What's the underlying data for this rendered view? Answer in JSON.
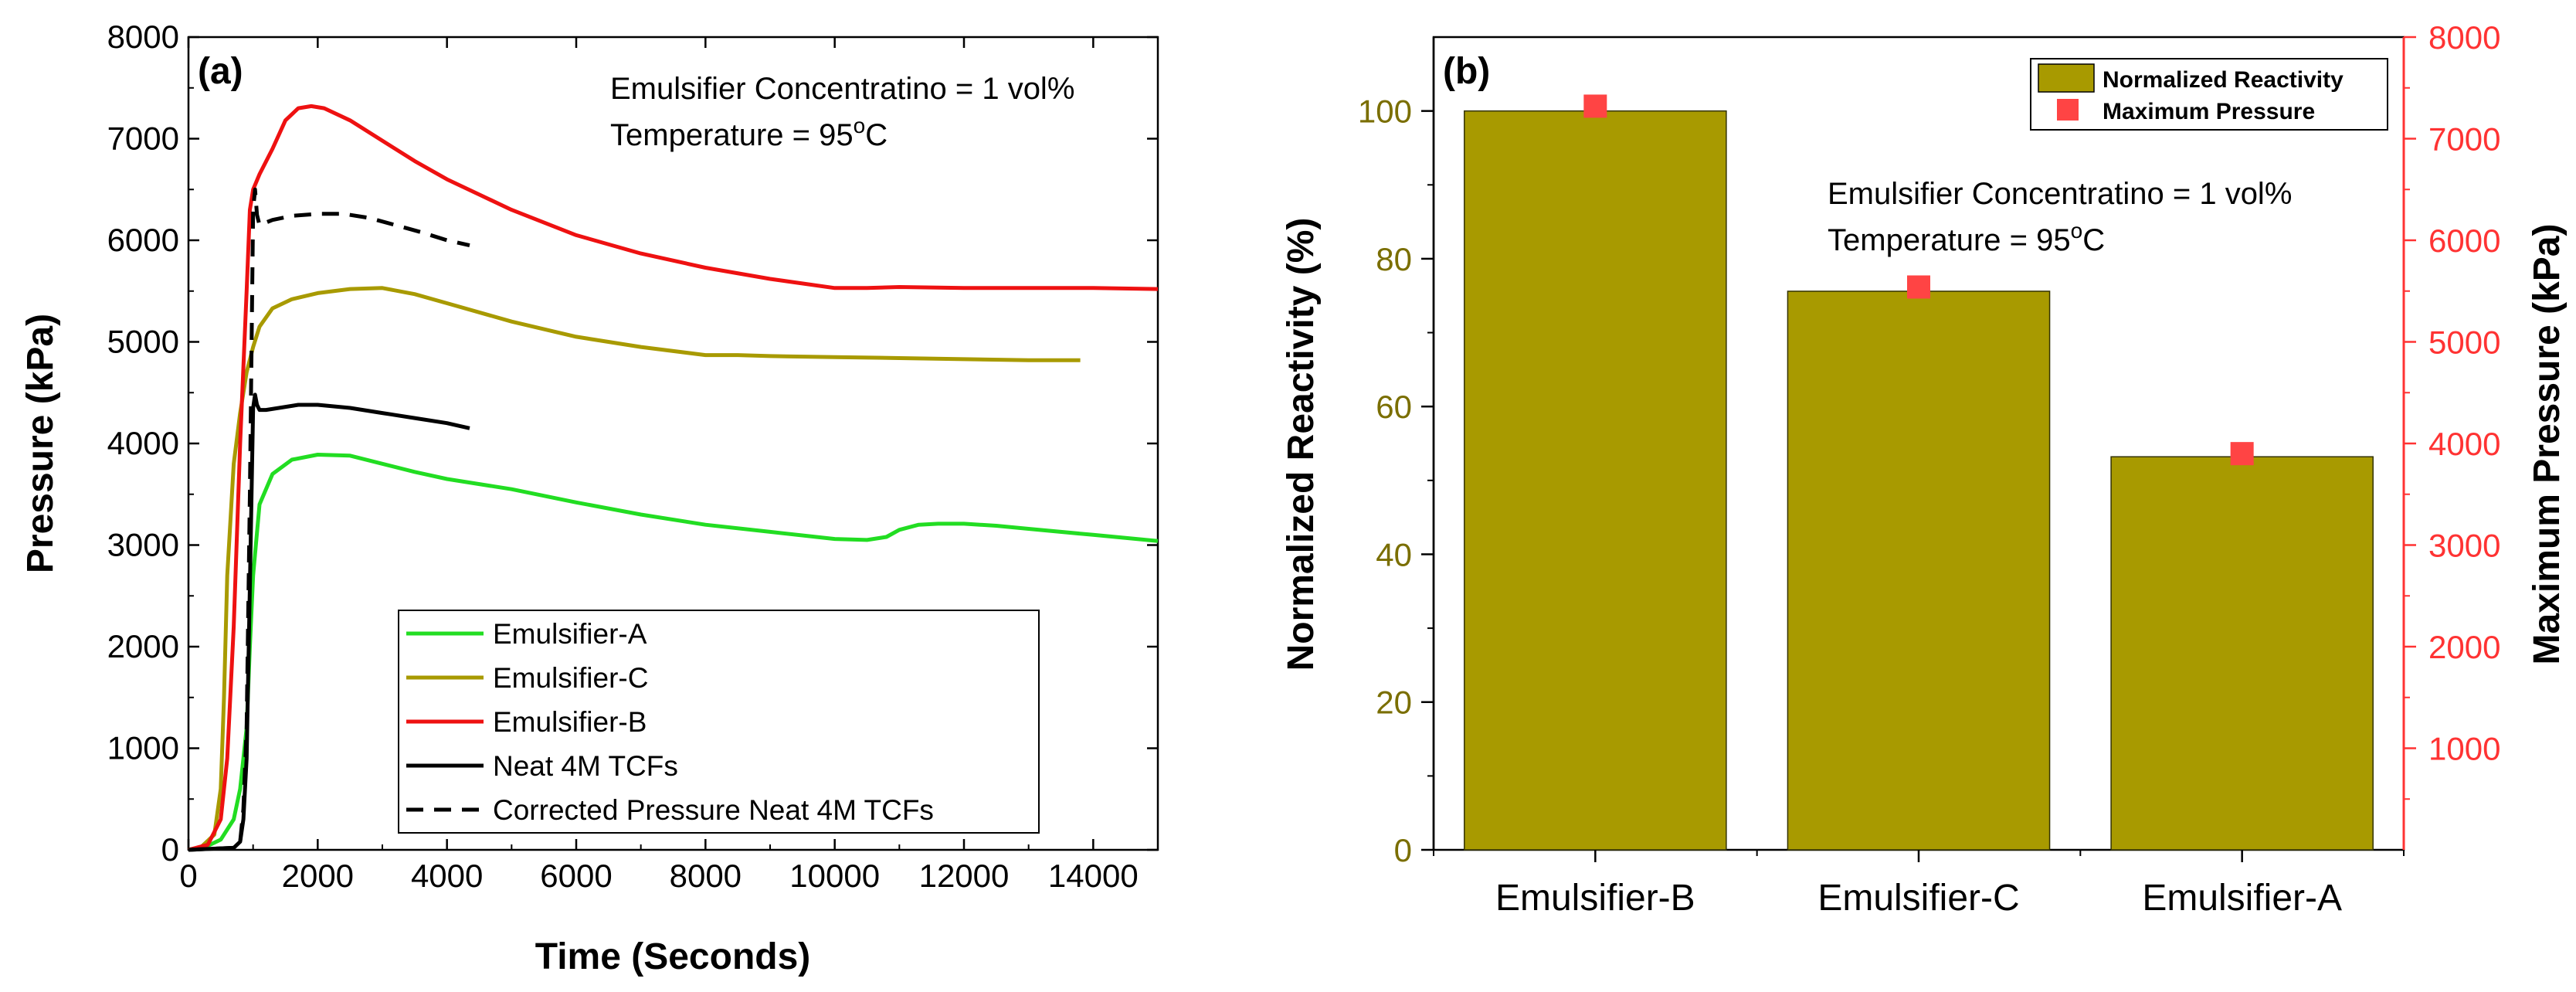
{
  "chart_data": [
    {
      "type": "line",
      "panel_label": "(a)",
      "xlabel": "Time (Seconds)",
      "ylabel": "Pressure (kPa)",
      "xlim": [
        0,
        15000
      ],
      "ylim": [
        0,
        8000
      ],
      "xticks": [
        "0",
        "2000",
        "4000",
        "6000",
        "8000",
        "10000",
        "12000",
        "14000"
      ],
      "yticks": [
        "0",
        "1000",
        "2000",
        "3000",
        "4000",
        "5000",
        "6000",
        "7000",
        "8000"
      ],
      "annotations": {
        "line1": "Emulsifier Concentratino = 1 vol%",
        "line2_prefix": "Temperature = 95",
        "line2_sup": "o",
        "line2_suffix": "C"
      },
      "legend_position": "bottom-center",
      "series": [
        {
          "name": "Emulsifier-A",
          "color": "#22dd22",
          "dash": "solid",
          "x": [
            0,
            300,
            500,
            700,
            800,
            900,
            950,
            1000,
            1100,
            1300,
            1600,
            2000,
            2500,
            3000,
            3500,
            4000,
            5000,
            6000,
            7000,
            8000,
            9000,
            10000,
            10500,
            10800,
            11000,
            11300,
            11600,
            12000,
            12500,
            13000,
            14000,
            15000
          ],
          "y": [
            0,
            40,
            100,
            300,
            600,
            1200,
            2000,
            2700,
            3400,
            3700,
            3840,
            3890,
            3880,
            3800,
            3720,
            3650,
            3550,
            3420,
            3300,
            3200,
            3130,
            3060,
            3050,
            3080,
            3150,
            3200,
            3210,
            3210,
            3190,
            3160,
            3100,
            3040
          ]
        },
        {
          "name": "Emulsifier-C",
          "color": "#a89a00",
          "dash": "solid",
          "x": [
            0,
            200,
            400,
            500,
            550,
            600,
            700,
            800,
            900,
            1000,
            1100,
            1300,
            1600,
            2000,
            2500,
            3000,
            3500,
            4000,
            5000,
            6000,
            7000,
            8000,
            8500,
            9000,
            10000,
            11000,
            12000,
            13000,
            13800
          ],
          "y": [
            0,
            30,
            150,
            600,
            1500,
            2700,
            3800,
            4300,
            4700,
            4950,
            5150,
            5330,
            5420,
            5480,
            5520,
            5530,
            5470,
            5380,
            5200,
            5050,
            4950,
            4870,
            4870,
            4860,
            4850,
            4840,
            4830,
            4820,
            4820
          ]
        },
        {
          "name": "Emulsifier-B",
          "color": "#ee1111",
          "dash": "solid",
          "x": [
            0,
            300,
            500,
            600,
            700,
            800,
            900,
            950,
            1000,
            1100,
            1300,
            1500,
            1700,
            1900,
            2100,
            2500,
            3000,
            3500,
            4000,
            5000,
            6000,
            7000,
            8000,
            9000,
            10000,
            10500,
            11000,
            12000,
            13000,
            14000,
            15000
          ],
          "y": [
            0,
            50,
            300,
            900,
            2200,
            4000,
            5500,
            6300,
            6500,
            6650,
            6900,
            7180,
            7300,
            7320,
            7300,
            7180,
            6980,
            6780,
            6600,
            6300,
            6050,
            5870,
            5730,
            5620,
            5530,
            5530,
            5540,
            5530,
            5530,
            5530,
            5520
          ]
        },
        {
          "name": "Neat 4M TCFs",
          "color": "#000000",
          "dash": "solid",
          "x": [
            0,
            700,
            800,
            850,
            900,
            950,
            1000,
            1030,
            1060,
            1100,
            1200,
            1400,
            1700,
            2000,
            2500,
            3000,
            3500,
            4000,
            4350
          ],
          "y": [
            0,
            20,
            80,
            300,
            900,
            2600,
            4350,
            4480,
            4380,
            4330,
            4330,
            4350,
            4380,
            4380,
            4350,
            4300,
            4250,
            4200,
            4150
          ]
        },
        {
          "name": "Corrected Pressure Neat 4M TCFs",
          "color": "#000000",
          "dash": "dashed",
          "x": [
            0,
            700,
            800,
            850,
            900,
            950,
            1000,
            1030,
            1060,
            1100,
            1300,
            1600,
            2000,
            2400,
            2800,
            3200,
            3600,
            4000,
            4350
          ],
          "y": [
            0,
            20,
            80,
            400,
            1200,
            3500,
            6300,
            6500,
            6250,
            6150,
            6200,
            6240,
            6260,
            6260,
            6220,
            6150,
            6080,
            6000,
            5950
          ]
        }
      ]
    },
    {
      "type": "bar",
      "panel_label": "(b)",
      "categories": [
        "Emulsifier-B",
        "Emulsifier-C",
        "Emulsifier-A"
      ],
      "ylabel": "Normalized Reactivity (%)",
      "ylabel_right": "Maximum Pressure (kPa)",
      "ylim": [
        0,
        110
      ],
      "ylim_right": [
        0,
        8000
      ],
      "yticks": [
        "0",
        "20",
        "40",
        "60",
        "80",
        "100"
      ],
      "yticks_right": [
        "1000",
        "2000",
        "3000",
        "4000",
        "5000",
        "6000",
        "7000",
        "8000"
      ],
      "annotations": {
        "line1": "Emulsifier Concentratino = 1 vol%",
        "line2_prefix": "Temperature = 95",
        "line2_sup": "o",
        "line2_suffix": "C"
      },
      "legend_position": "top-right",
      "series": [
        {
          "name": "Normalized Reactivity",
          "axis": "left",
          "kind": "bar",
          "color": "#a89a00",
          "values": [
            100,
            75.6,
            53.2
          ]
        },
        {
          "name": "Maximum Pressure",
          "axis": "right",
          "kind": "marker",
          "color": "#ff4444",
          "values": [
            7320,
            5540,
            3900
          ]
        }
      ],
      "left_axis_color": "#7a6e00",
      "right_axis_color": "#ff3333"
    }
  ]
}
